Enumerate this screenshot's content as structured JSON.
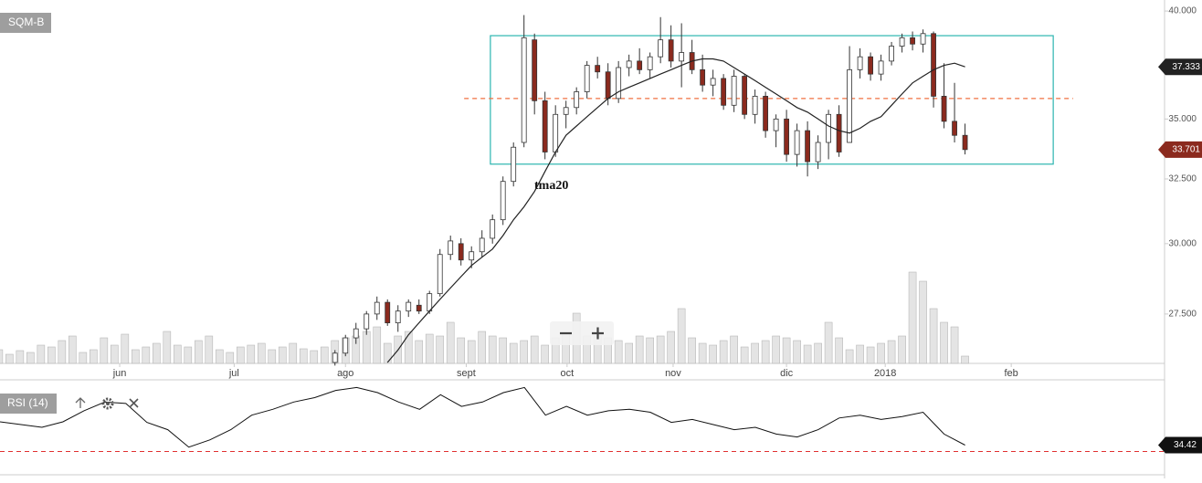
{
  "chart_data": {
    "type": "candlestick",
    "title": "SQM-B",
    "xlim": [
      -31.9,
      79
    ],
    "xticks": [
      {
        "value": -20.5,
        "label": "jun"
      },
      {
        "value": -9.6,
        "label": "jul"
      },
      {
        "value": 1.0,
        "label": "ago"
      },
      {
        "value": 12.5,
        "label": "sept"
      },
      {
        "value": 22.1,
        "label": "oct"
      },
      {
        "value": 32.2,
        "label": "nov"
      },
      {
        "value": 43.0,
        "label": "dic"
      },
      {
        "value": 52.4,
        "label": "2018"
      },
      {
        "value": 64.4,
        "label": "feb"
      }
    ],
    "ylim": [
      25.87,
      40.55
    ],
    "log_scale": true,
    "yticks": [
      {
        "value": 27.5,
        "label": "27.500"
      },
      {
        "value": 30,
        "label": "30.000"
      },
      {
        "value": 32.5,
        "label": "32.500"
      },
      {
        "value": 35,
        "label": "35.000"
      },
      {
        "value": 40,
        "label": "40.000"
      }
    ],
    "up_color": "#ffffff",
    "down_color": "#8b2a1e",
    "ohlc": [
      [
        25.9,
        26.3,
        25.8,
        26.2
      ],
      [
        26.2,
        26.8,
        26.1,
        26.7
      ],
      [
        26.7,
        27.2,
        26.5,
        27.0
      ],
      [
        27.0,
        27.6,
        26.8,
        27.5
      ],
      [
        27.5,
        28.1,
        27.3,
        27.9
      ],
      [
        27.9,
        28.0,
        27.1,
        27.2
      ],
      [
        27.2,
        27.8,
        26.9,
        27.6
      ],
      [
        27.6,
        28.0,
        27.4,
        27.9
      ],
      [
        27.8,
        28.0,
        27.5,
        27.6
      ],
      [
        27.6,
        28.3,
        27.5,
        28.2
      ],
      [
        28.2,
        29.8,
        28.1,
        29.6
      ],
      [
        29.6,
        30.3,
        29.4,
        30.1
      ],
      [
        30.0,
        30.2,
        29.2,
        29.4
      ],
      [
        29.4,
        29.9,
        29.1,
        29.7
      ],
      [
        29.7,
        30.5,
        29.5,
        30.2
      ],
      [
        30.2,
        31.1,
        30.0,
        30.9
      ],
      [
        30.9,
        32.6,
        30.7,
        32.4
      ],
      [
        32.4,
        34.0,
        32.2,
        33.8
      ],
      [
        34.0,
        39.8,
        33.8,
        38.7
      ],
      [
        38.6,
        38.9,
        35.2,
        35.8
      ],
      [
        35.8,
        36.2,
        33.3,
        33.6
      ],
      [
        33.6,
        35.6,
        33.4,
        35.2
      ],
      [
        35.2,
        35.8,
        34.6,
        35.5
      ],
      [
        35.5,
        36.4,
        35.2,
        36.2
      ],
      [
        36.2,
        37.6,
        35.9,
        37.4
      ],
      [
        37.4,
        37.8,
        36.8,
        37.1
      ],
      [
        37.1,
        37.5,
        35.6,
        35.9
      ],
      [
        35.9,
        37.6,
        35.7,
        37.3
      ],
      [
        37.3,
        37.9,
        36.9,
        37.6
      ],
      [
        37.6,
        38.2,
        37.0,
        37.2
      ],
      [
        37.2,
        38.0,
        36.8,
        37.8
      ],
      [
        37.8,
        39.7,
        37.5,
        38.6
      ],
      [
        38.6,
        39.3,
        37.3,
        37.6
      ],
      [
        37.6,
        39.4,
        36.4,
        38.0
      ],
      [
        38.0,
        38.6,
        37.0,
        37.2
      ],
      [
        37.2,
        37.9,
        36.2,
        36.5
      ],
      [
        36.5,
        37.2,
        36.0,
        36.8
      ],
      [
        36.8,
        37.0,
        35.4,
        35.6
      ],
      [
        35.6,
        37.2,
        35.3,
        36.9
      ],
      [
        36.9,
        37.0,
        35.0,
        35.2
      ],
      [
        35.2,
        36.3,
        34.8,
        36.0
      ],
      [
        36.0,
        36.2,
        34.2,
        34.5
      ],
      [
        34.5,
        35.2,
        33.8,
        35.0
      ],
      [
        35.0,
        35.4,
        33.2,
        33.5
      ],
      [
        33.5,
        34.8,
        33.0,
        34.5
      ],
      [
        34.5,
        34.9,
        32.6,
        33.2
      ],
      [
        33.2,
        34.3,
        32.9,
        34.0
      ],
      [
        34.0,
        35.4,
        33.3,
        35.2
      ],
      [
        35.2,
        35.6,
        33.4,
        33.6
      ],
      [
        34.0,
        38.3,
        34.0,
        37.2
      ],
      [
        37.2,
        38.2,
        36.8,
        37.8
      ],
      [
        37.8,
        38.0,
        36.7,
        37.0
      ],
      [
        37.0,
        37.9,
        36.7,
        37.6
      ],
      [
        37.6,
        38.5,
        37.4,
        38.3
      ],
      [
        38.3,
        38.9,
        38.0,
        38.7
      ],
      [
        38.7,
        39.0,
        38.1,
        38.4
      ],
      [
        38.4,
        39.1,
        38.0,
        38.9
      ],
      [
        38.9,
        39.0,
        35.5,
        36.0
      ],
      [
        36.0,
        37.5,
        34.6,
        34.9
      ],
      [
        34.9,
        36.6,
        34.0,
        34.3
      ],
      [
        34.3,
        34.8,
        33.5,
        33.701
      ]
    ],
    "series": [
      {
        "name": "tma20",
        "color": "#222222",
        "values": [
          null,
          null,
          null,
          null,
          null,
          25.9,
          26.3,
          26.8,
          27.2,
          27.6,
          28.0,
          28.4,
          28.8,
          29.2,
          29.5,
          29.8,
          30.3,
          30.9,
          31.4,
          32.0,
          32.8,
          33.6,
          34.3,
          34.7,
          35.1,
          35.5,
          35.9,
          36.2,
          36.4,
          36.6,
          36.8,
          37.0,
          37.2,
          37.4,
          37.6,
          37.7,
          37.7,
          37.6,
          37.3,
          37.0,
          36.7,
          36.4,
          36.1,
          35.8,
          35.5,
          35.3,
          35.0,
          34.7,
          34.5,
          34.4,
          34.6,
          34.9,
          35.1,
          35.6,
          36.1,
          36.6,
          36.9,
          37.2,
          37.4,
          37.5,
          37.333
        ]
      }
    ],
    "volume": {
      "color": "#e4e4e4",
      "ylim": [
        0,
        100
      ],
      "values": [
        15,
        10,
        14,
        12,
        20,
        18,
        25,
        30,
        12,
        15,
        28,
        20,
        32,
        15,
        18,
        22,
        35,
        20,
        18,
        25,
        30,
        15,
        12,
        18,
        20,
        22,
        15,
        18,
        22,
        16,
        14,
        18,
        25,
        28,
        30,
        35,
        40,
        22,
        30,
        35,
        25,
        32,
        30,
        45,
        28,
        25,
        35,
        30,
        28,
        22,
        25,
        30,
        20,
        28,
        32,
        55,
        30,
        30,
        28,
        25,
        22,
        30,
        28,
        30,
        35,
        60,
        28,
        22,
        20,
        25,
        30,
        18,
        22,
        25,
        30,
        28,
        25,
        20,
        22,
        45,
        28,
        15,
        20,
        18,
        22,
        25,
        30,
        100,
        90,
        60,
        45,
        40,
        8
      ]
    },
    "box": {
      "x": [
        14.8,
        68.4
      ],
      "y": [
        33.1,
        38.8
      ],
      "color": "#2bb5b0"
    },
    "hline": {
      "value": 35.9,
      "x": [
        12.3,
        70.3
      ],
      "color": "#f07040"
    },
    "rsi": {
      "title": "RSI (14)",
      "color": "#111111",
      "ylim": [
        14,
        78
      ],
      "level": 30,
      "level_color": "#e03030",
      "values": [
        50.4,
        48.5,
        46.6,
        50.4,
        58,
        64,
        63,
        50,
        45,
        33,
        38,
        45,
        55,
        59,
        64,
        67,
        72,
        74,
        70.5,
        64,
        59,
        69,
        61,
        64,
        70.5,
        74,
        55,
        61,
        55,
        58,
        59,
        57,
        50,
        52,
        48.5,
        45,
        46.6,
        42,
        40,
        45,
        53,
        55,
        52,
        54,
        57,
        42,
        34.42
      ]
    }
  }
}
